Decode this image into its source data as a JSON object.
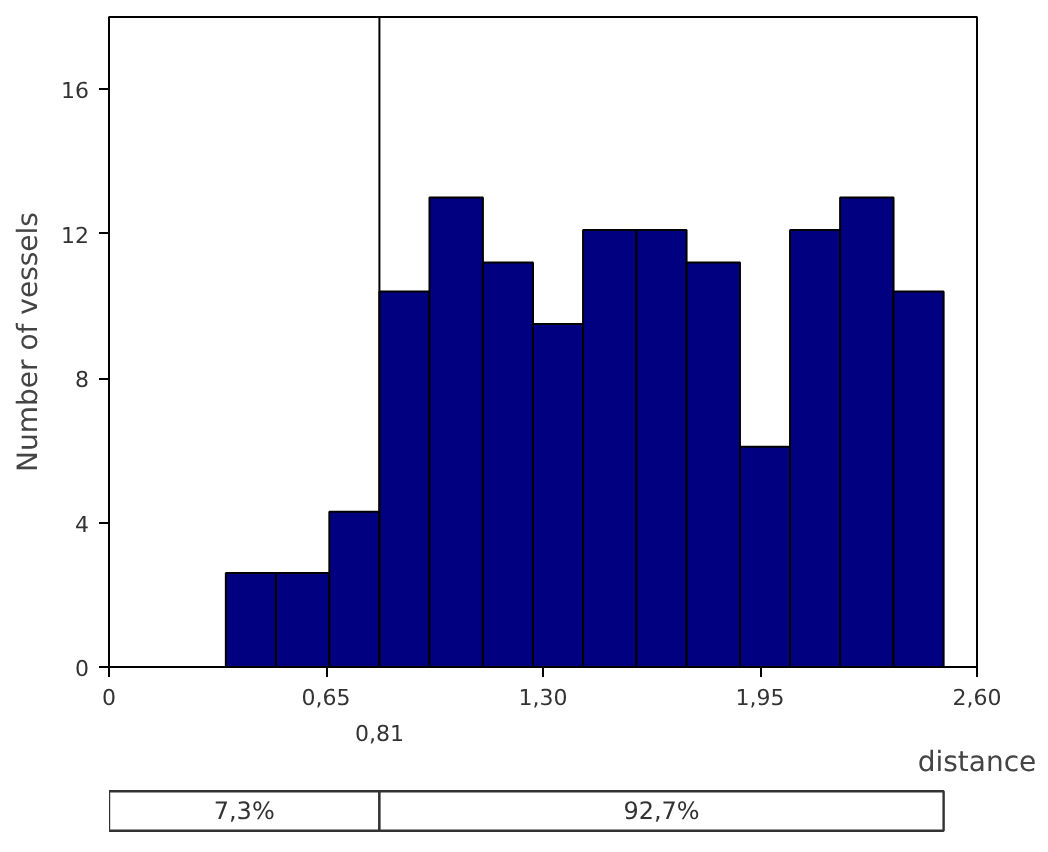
{
  "chart_data": {
    "type": "histogram",
    "xlabel": "distance",
    "ylabel": "Number of vessels",
    "bins": [
      0.35,
      0.5,
      0.66,
      0.81,
      0.96,
      1.12,
      1.27,
      1.42,
      1.58,
      1.73,
      1.89,
      2.04,
      2.19,
      2.35,
      2.5
    ],
    "values": [
      2.6,
      2.6,
      4.3,
      10.4,
      13.0,
      11.2,
      9.5,
      12.1,
      12.1,
      11.2,
      6.1,
      12.1,
      13.0,
      10.4
    ],
    "color": "#000080",
    "xlim": [
      0,
      2.6
    ],
    "ylim": [
      0,
      18
    ],
    "xticks": [
      0,
      {
        "value": 0.65,
        "label": "0,65"
      },
      {
        "value": 1.3,
        "label": "1,30"
      },
      {
        "value": 1.95,
        "label": "1,95"
      },
      {
        "value": 2.6,
        "label": "2,60"
      }
    ],
    "yticks": [
      0,
      4,
      8,
      12,
      16
    ],
    "ref_lines": [
      {
        "axis": "x",
        "value": 0.81,
        "label": "0,81"
      }
    ],
    "annotations": [
      "7,3%",
      "92,7%"
    ],
    "grid": false
  }
}
